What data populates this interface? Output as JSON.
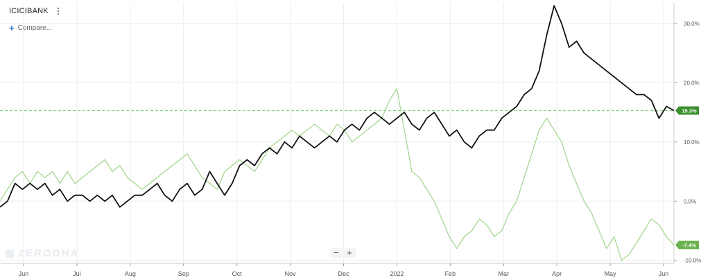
{
  "header": {
    "symbol": "ICICIBANK",
    "compare_label": "Compare..."
  },
  "watermark": "ZERODHA",
  "zoom": {
    "out_label": "−",
    "in_label": "+"
  },
  "colors": {
    "primary_series": "#111111",
    "compare_series": "#9fd48a",
    "reference_line": "#7fd37f",
    "badge_primary": "#3c8f2f",
    "badge_compare": "#6ab04c",
    "grid": "#eeeeee",
    "axis_text": "#555555"
  },
  "chart_data": {
    "type": "line",
    "x_labels": [
      "Jun",
      "Jul",
      "Aug",
      "Sep",
      "Oct",
      "Nov",
      "Dec",
      "2022",
      "Feb",
      "Mar",
      "Apr",
      "May",
      "Jun"
    ],
    "y_ticks": [
      "30.0%",
      "20.0%",
      "10.0%",
      "0.0%",
      "-10.0%"
    ],
    "y_tick_values": [
      30,
      20,
      10,
      0,
      -10
    ],
    "ylim": [
      -10.5,
      33.5
    ],
    "grid": true,
    "reference_line_value": 15.3,
    "x_index_range": [
      0,
      270
    ],
    "series": [
      {
        "label": "15.3%",
        "end_value": 15.3,
        "points": [
          [
            0,
            -1
          ],
          [
            3,
            0
          ],
          [
            6,
            3
          ],
          [
            9,
            2
          ],
          [
            12,
            3
          ],
          [
            15,
            2
          ],
          [
            18,
            3
          ],
          [
            21,
            1
          ],
          [
            24,
            2
          ],
          [
            27,
            0
          ],
          [
            30,
            1
          ],
          [
            33,
            1
          ],
          [
            36,
            0
          ],
          [
            39,
            1
          ],
          [
            42,
            0
          ],
          [
            45,
            1
          ],
          [
            48,
            -1
          ],
          [
            51,
            0
          ],
          [
            54,
            1
          ],
          [
            57,
            1
          ],
          [
            60,
            2
          ],
          [
            63,
            3
          ],
          [
            66,
            1
          ],
          [
            69,
            0
          ],
          [
            72,
            2
          ],
          [
            75,
            3
          ],
          [
            78,
            1
          ],
          [
            81,
            2
          ],
          [
            84,
            5
          ],
          [
            87,
            3
          ],
          [
            90,
            1
          ],
          [
            93,
            3
          ],
          [
            96,
            6
          ],
          [
            99,
            7
          ],
          [
            102,
            6
          ],
          [
            105,
            8
          ],
          [
            108,
            9
          ],
          [
            111,
            8
          ],
          [
            114,
            10
          ],
          [
            117,
            9
          ],
          [
            120,
            11
          ],
          [
            123,
            10
          ],
          [
            126,
            9
          ],
          [
            129,
            10
          ],
          [
            132,
            11
          ],
          [
            135,
            10
          ],
          [
            138,
            12
          ],
          [
            141,
            13
          ],
          [
            144,
            12
          ],
          [
            147,
            14
          ],
          [
            150,
            15
          ],
          [
            153,
            14
          ],
          [
            156,
            13
          ],
          [
            159,
            14
          ],
          [
            162,
            15
          ],
          [
            165,
            13
          ],
          [
            168,
            12
          ],
          [
            171,
            14
          ],
          [
            174,
            15
          ],
          [
            177,
            13
          ],
          [
            180,
            11
          ],
          [
            183,
            12
          ],
          [
            186,
            10
          ],
          [
            189,
            9
          ],
          [
            192,
            11
          ],
          [
            195,
            12
          ],
          [
            198,
            12
          ],
          [
            201,
            14
          ],
          [
            204,
            15
          ],
          [
            207,
            16
          ],
          [
            210,
            18
          ],
          [
            213,
            19
          ],
          [
            216,
            22
          ],
          [
            219,
            28
          ],
          [
            222,
            33
          ],
          [
            225,
            30
          ],
          [
            228,
            26
          ],
          [
            231,
            27
          ],
          [
            234,
            25
          ],
          [
            237,
            24
          ],
          [
            240,
            23
          ],
          [
            243,
            22
          ],
          [
            246,
            21
          ],
          [
            249,
            20
          ],
          [
            252,
            19
          ],
          [
            255,
            18
          ],
          [
            258,
            18
          ],
          [
            261,
            17
          ],
          [
            264,
            14
          ],
          [
            267,
            16
          ],
          [
            270,
            15.3
          ]
        ]
      },
      {
        "label": "-7.4%",
        "end_value": -7.4,
        "points": [
          [
            0,
            0
          ],
          [
            3,
            2
          ],
          [
            6,
            4
          ],
          [
            9,
            5
          ],
          [
            12,
            3
          ],
          [
            15,
            5
          ],
          [
            18,
            4
          ],
          [
            21,
            5
          ],
          [
            24,
            3
          ],
          [
            27,
            5
          ],
          [
            30,
            3
          ],
          [
            33,
            4
          ],
          [
            36,
            5
          ],
          [
            39,
            6
          ],
          [
            42,
            7
          ],
          [
            45,
            5
          ],
          [
            48,
            6
          ],
          [
            51,
            4
          ],
          [
            54,
            3
          ],
          [
            57,
            2
          ],
          [
            60,
            3
          ],
          [
            63,
            4
          ],
          [
            66,
            5
          ],
          [
            69,
            6
          ],
          [
            72,
            7
          ],
          [
            75,
            8
          ],
          [
            78,
            6
          ],
          [
            81,
            4
          ],
          [
            84,
            3
          ],
          [
            87,
            2
          ],
          [
            90,
            5
          ],
          [
            93,
            6
          ],
          [
            96,
            7
          ],
          [
            99,
            6
          ],
          [
            102,
            5
          ],
          [
            105,
            7
          ],
          [
            108,
            9
          ],
          [
            111,
            10
          ],
          [
            114,
            11
          ],
          [
            117,
            12
          ],
          [
            120,
            11
          ],
          [
            123,
            12
          ],
          [
            126,
            13
          ],
          [
            129,
            12
          ],
          [
            132,
            11
          ],
          [
            135,
            13
          ],
          [
            138,
            12
          ],
          [
            141,
            10
          ],
          [
            144,
            11
          ],
          [
            147,
            12
          ],
          [
            150,
            13
          ],
          [
            153,
            14
          ],
          [
            156,
            17
          ],
          [
            159,
            19
          ],
          [
            162,
            12
          ],
          [
            165,
            5
          ],
          [
            168,
            4
          ],
          [
            171,
            2
          ],
          [
            174,
            0
          ],
          [
            177,
            -3
          ],
          [
            180,
            -6
          ],
          [
            183,
            -8
          ],
          [
            186,
            -6
          ],
          [
            189,
            -5
          ],
          [
            192,
            -3
          ],
          [
            195,
            -4
          ],
          [
            198,
            -6
          ],
          [
            201,
            -5
          ],
          [
            204,
            -2
          ],
          [
            207,
            0
          ],
          [
            210,
            4
          ],
          [
            213,
            8
          ],
          [
            216,
            12
          ],
          [
            219,
            14
          ],
          [
            222,
            12
          ],
          [
            225,
            10
          ],
          [
            228,
            6
          ],
          [
            231,
            3
          ],
          [
            234,
            0
          ],
          [
            237,
            -2
          ],
          [
            240,
            -5
          ],
          [
            243,
            -8
          ],
          [
            246,
            -6
          ],
          [
            249,
            -10
          ],
          [
            252,
            -9
          ],
          [
            255,
            -7
          ],
          [
            258,
            -5
          ],
          [
            261,
            -3
          ],
          [
            264,
            -4
          ],
          [
            267,
            -6
          ],
          [
            270,
            -7.4
          ]
        ]
      }
    ]
  }
}
